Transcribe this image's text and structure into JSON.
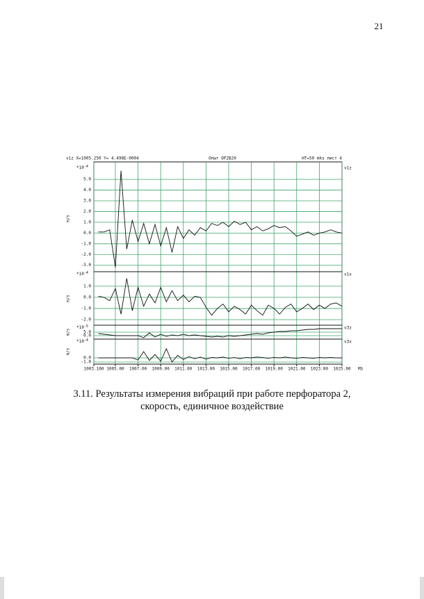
{
  "page_number": "21",
  "figure": {
    "header": {
      "left": "v1z X=1005.250 Y= 4.498E-0004",
      "center": "Опыт OP2B20",
      "right": "HT=50 mks   лист  4"
    },
    "x_unit": "MS",
    "xlim": [
      1003.1,
      1025
    ],
    "xticks": [
      {
        "value": 1003.1,
        "label": "1003.100"
      },
      {
        "value": 1005,
        "label": "1005.00"
      },
      {
        "value": 1007,
        "label": "1007.00"
      },
      {
        "value": 1009,
        "label": "1009.00"
      },
      {
        "value": 1011,
        "label": "1011.00"
      },
      {
        "value": 1013,
        "label": "1013.00"
      },
      {
        "value": 1015,
        "label": "1015.00"
      },
      {
        "value": 1017,
        "label": "1017.00"
      },
      {
        "value": 1019,
        "label": "1019.00"
      },
      {
        "value": 1021,
        "label": "1021.00"
      },
      {
        "value": 1023,
        "label": "1023.00"
      },
      {
        "value": 1025,
        "label": "1025.00"
      }
    ],
    "x": [
      1003.5,
      1004,
      1004.5,
      1005,
      1005.5,
      1006,
      1006.5,
      1007,
      1007.5,
      1008,
      1008.5,
      1009,
      1009.5,
      1010,
      1010.5,
      1011,
      1011.5,
      1012,
      1012.5,
      1013,
      1013.5,
      1014,
      1014.5,
      1015,
      1015.5,
      1016,
      1016.5,
      1017,
      1017.5,
      1018,
      1018.5,
      1019,
      1019.5,
      1020,
      1020.5,
      1021,
      1021.5,
      1022,
      1022.5,
      1023,
      1023.5,
      1024,
      1024.5,
      1025
    ],
    "panels": [
      {
        "name": "v1z",
        "scale": "*10",
        "exponent": "-4",
        "unit": "m/s",
        "ylim": [
          -3.6,
          6.3
        ],
        "yticks": [
          {
            "value": 5,
            "label": "5.0"
          },
          {
            "value": 4,
            "label": "4.0"
          },
          {
            "value": 3,
            "label": "3.0"
          },
          {
            "value": 2,
            "label": "2.0"
          },
          {
            "value": 1,
            "label": "1.0"
          },
          {
            "value": 0,
            "label": "0.0"
          },
          {
            "value": -1,
            "label": "-1.0"
          },
          {
            "value": -2,
            "label": "-2.0"
          },
          {
            "value": -3,
            "label": "-3.0"
          }
        ],
        "values": [
          0.1,
          0.1,
          0.3,
          -3.2,
          5.8,
          -1.5,
          1.2,
          -0.8,
          0.9,
          -1.0,
          0.8,
          -1.2,
          0.5,
          -1.8,
          0.6,
          -0.5,
          0.3,
          -0.2,
          0.5,
          0.2,
          0.9,
          0.7,
          1.0,
          0.6,
          1.1,
          0.8,
          1.0,
          0.3,
          0.6,
          0.2,
          0.4,
          0.7,
          0.5,
          0.6,
          0.2,
          -0.3,
          -0.1,
          0.1,
          -0.2,
          0.0,
          0.1,
          0.3,
          0.1,
          0.0
        ]
      },
      {
        "name": "v1x",
        "scale": "*10",
        "exponent": "-4",
        "unit": "m/s",
        "ylim": [
          -2.5,
          2.3
        ],
        "yticks": [
          {
            "value": 1,
            "label": "1.0"
          },
          {
            "value": 0,
            "label": "0.0"
          },
          {
            "value": -1,
            "label": "-1.0"
          },
          {
            "value": -2,
            "label": "-2.0"
          }
        ],
        "values": [
          0.1,
          0.0,
          -0.3,
          0.8,
          -1.5,
          1.7,
          -1.2,
          0.9,
          -0.8,
          0.3,
          -0.5,
          0.9,
          -0.4,
          0.6,
          -0.3,
          0.2,
          -0.4,
          0.1,
          0.0,
          -0.9,
          -1.6,
          -1.0,
          -0.6,
          -1.3,
          -0.8,
          -1.1,
          -1.5,
          -0.7,
          -1.2,
          -1.6,
          -0.7,
          -1.0,
          -1.5,
          -0.9,
          -0.6,
          -1.3,
          -1.0,
          -0.6,
          -1.1,
          -0.7,
          -1.0,
          -0.6,
          -0.5,
          -0.8
        ]
      },
      {
        "name": "v3z",
        "scale": "*10",
        "exponent": "-5",
        "unit": "m/s",
        "ylim": [
          -5,
          15
        ],
        "yticks": [
          {
            "value": 5,
            "label": "5.0"
          },
          {
            "value": 0,
            "label": "0.0"
          }
        ],
        "values": [
          3,
          2,
          1,
          0,
          0,
          0,
          0,
          0,
          -3,
          4,
          -2,
          2,
          -1,
          1,
          0,
          2,
          0,
          1,
          0,
          -1,
          -2,
          -1,
          -2,
          0,
          -1,
          0,
          1,
          2,
          3,
          2,
          4,
          5,
          6,
          6,
          7,
          7,
          8,
          9,
          9,
          10,
          10,
          10,
          10,
          10
        ]
      },
      {
        "name": "v3x",
        "scale": "*10",
        "exponent": "-4",
        "unit": "m/s",
        "ylim": [
          -1.5,
          4.5
        ],
        "yticks": [
          {
            "value": 0,
            "label": "0.0"
          },
          {
            "value": -1,
            "label": "-1.0"
          }
        ],
        "values": [
          0,
          0,
          0,
          0,
          0,
          0,
          0,
          -0.5,
          1.5,
          -0.6,
          0.8,
          -0.8,
          2.2,
          -1.0,
          0.6,
          -0.4,
          0.3,
          -0.2,
          0.2,
          -0.3,
          0.1,
          0,
          0.2,
          -0.1,
          0.1,
          -0.2,
          0.1,
          0,
          0.2,
          0.1,
          -0.1,
          0.1,
          0,
          0.2,
          0,
          -0.1,
          0.1,
          0,
          -0.1,
          0.1,
          0,
          0.1,
          0,
          0
        ]
      }
    ]
  },
  "caption": [
    "3.11. Результаты измерения вибраций при работе перфоратора 2,",
    "скорость, единичное воздействие"
  ]
}
